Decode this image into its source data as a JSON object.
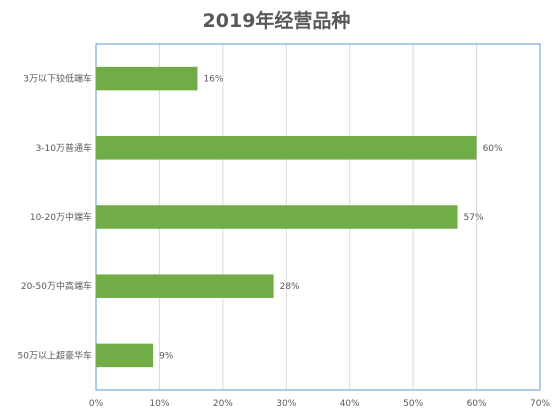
{
  "chart_data": {
    "type": "bar",
    "orientation": "horizontal",
    "title": "2019年经营品种",
    "categories": [
      "3万以下较低端车",
      "3-10万普通车",
      "10-20万中端车",
      "20-50万中高端车",
      "50万以上超豪华车"
    ],
    "values": [
      16,
      60,
      57,
      28,
      9
    ],
    "data_labels": [
      "16%",
      "60%",
      "57%",
      "28%",
      "9%"
    ],
    "xlim": [
      0,
      70
    ],
    "xticks": [
      0,
      10,
      20,
      30,
      40,
      50,
      60,
      70
    ],
    "xtick_labels": [
      "0%",
      "10%",
      "20%",
      "30%",
      "40%",
      "50%",
      "60%",
      "70%"
    ],
    "xlabel": "",
    "ylabel": "",
    "grid": true,
    "legend": "none",
    "colors": {
      "bar": "#70ad47",
      "grid": "#d9d9d9",
      "plot_border": "#5b9bd5",
      "text": "#595959",
      "title": "#595959"
    }
  }
}
